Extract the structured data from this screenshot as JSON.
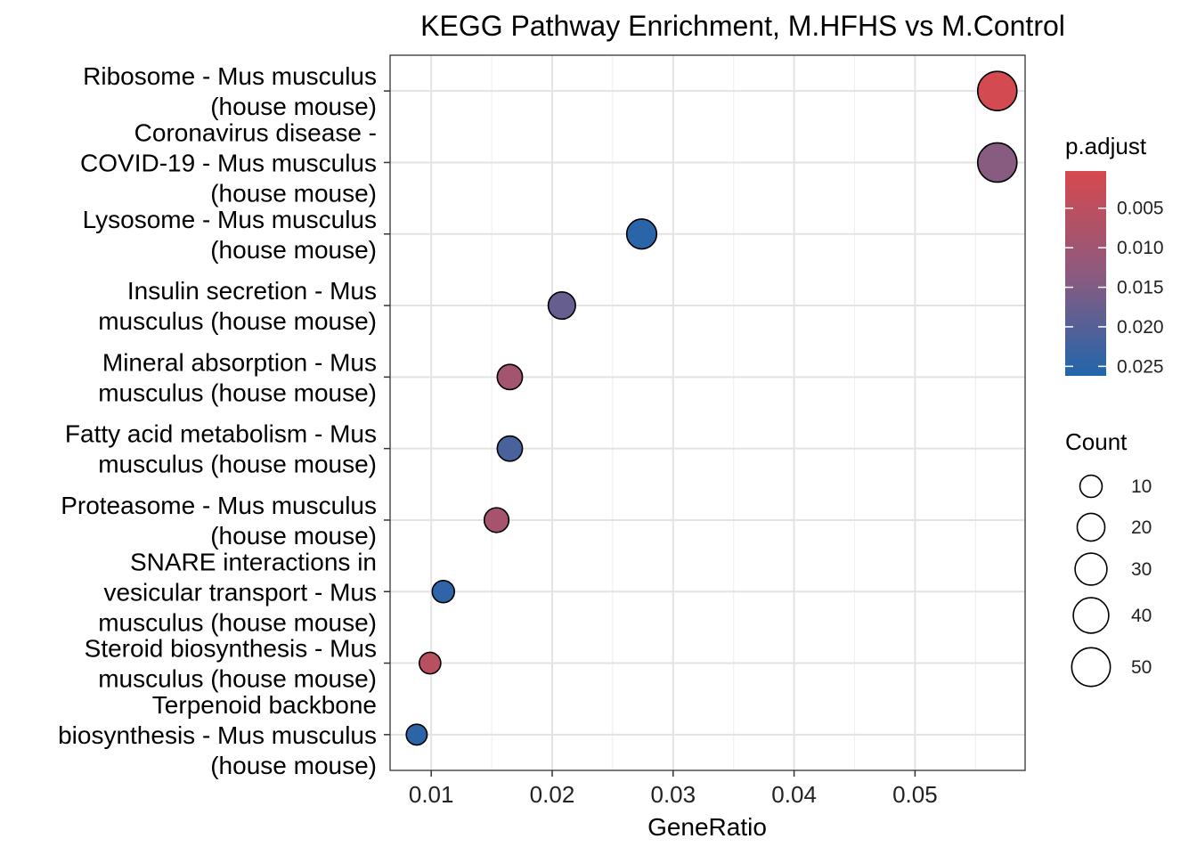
{
  "chart_data": {
    "type": "scatter",
    "title": "KEGG Pathway Enrichment, M.HFHS vs M.Control",
    "xlabel": "GeneRatio",
    "ylabel": "",
    "xlim": [
      0.0066,
      0.0591
    ],
    "x_ticks": [
      "0.01",
      "0.02",
      "0.03",
      "0.04",
      "0.05"
    ],
    "x_tick_values": [
      0.01,
      0.02,
      0.03,
      0.04,
      0.05
    ],
    "grid": true,
    "legend_position": "right",
    "points": [
      {
        "category": [
          "Ribosome - Mus musculus",
          "(house mouse)"
        ],
        "gene_ratio": 0.0568,
        "count": 52,
        "p_adjust": 0.0008
      },
      {
        "category": [
          "Coronavirus disease -",
          "COVID-19 - Mus musculus",
          "(house mouse)"
        ],
        "gene_ratio": 0.0568,
        "count": 52,
        "p_adjust": 0.014
      },
      {
        "category": [
          "Lysosome - Mus musculus",
          "(house mouse)"
        ],
        "gene_ratio": 0.0274,
        "count": 25,
        "p_adjust": 0.0252
      },
      {
        "category": [
          "Insulin secretion - Mus",
          "musculus (house mouse)"
        ],
        "gene_ratio": 0.0208,
        "count": 19,
        "p_adjust": 0.018
      },
      {
        "category": [
          "Mineral absorption - Mus",
          "musculus (house mouse)"
        ],
        "gene_ratio": 0.0165,
        "count": 15,
        "p_adjust": 0.0095
      },
      {
        "category": [
          "Fatty acid metabolism - Mus",
          "musculus (house mouse)"
        ],
        "gene_ratio": 0.0165,
        "count": 15,
        "p_adjust": 0.0215
      },
      {
        "category": [
          "Proteasome - Mus musculus",
          "(house mouse)"
        ],
        "gene_ratio": 0.0154,
        "count": 14,
        "p_adjust": 0.009
      },
      {
        "category": [
          "SNARE interactions in",
          "vesicular transport - Mus",
          "musculus (house mouse)"
        ],
        "gene_ratio": 0.011,
        "count": 10,
        "p_adjust": 0.0245
      },
      {
        "category": [
          "Steroid biosynthesis - Mus",
          "musculus (house mouse)"
        ],
        "gene_ratio": 0.0099,
        "count": 9,
        "p_adjust": 0.0055
      },
      {
        "category": [
          "Terpenoid backbone",
          "biosynthesis - Mus musculus",
          "(house mouse)"
        ],
        "gene_ratio": 0.0088,
        "count": 8,
        "p_adjust": 0.025
      }
    ],
    "color_legend": {
      "title": "p.adjust",
      "range": [
        0.0003,
        0.0262
      ],
      "low_color": "#d6494e",
      "high_color": "#2166ac",
      "ticks": [
        "0.005",
        "0.010",
        "0.015",
        "0.020",
        "0.025"
      ],
      "tick_values": [
        0.005,
        0.01,
        0.015,
        0.02,
        0.025
      ]
    },
    "size_legend": {
      "title": "Count",
      "labels": [
        "10",
        "20",
        "30",
        "40",
        "50"
      ],
      "values": [
        10,
        20,
        30,
        40,
        50
      ]
    }
  }
}
